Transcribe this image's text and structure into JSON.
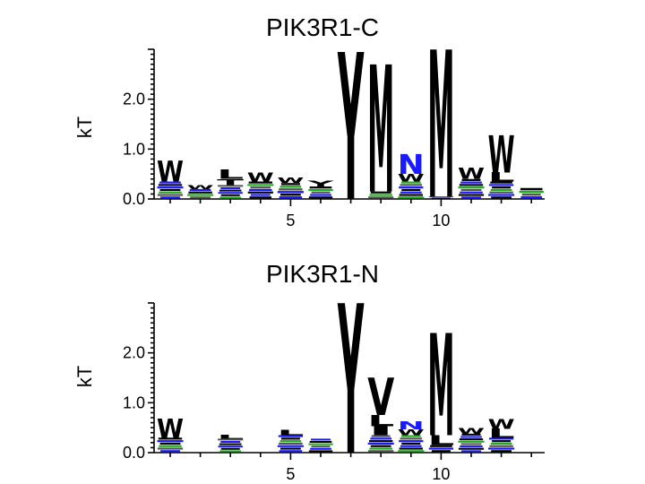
{
  "chart_data": [
    {
      "type": "sequence-logo",
      "title": "PIK3R1-C",
      "ylabel": "kT",
      "ylim": [
        0,
        3.0
      ],
      "yticks": [
        "0.0",
        "1.0",
        "2.0"
      ],
      "xticks": [
        "5",
        "10"
      ],
      "positions": [
        {
          "pos": 1,
          "letters": [
            {
              "char": "W",
              "height": 0.42,
              "color": "#000000"
            }
          ],
          "noise": 0.35
        },
        {
          "pos": 2,
          "letters": [
            {
              "char": "W",
              "height": 0.08,
              "color": "#000000"
            }
          ],
          "noise": 0.2
        },
        {
          "pos": 3,
          "letters": [
            {
              "char": "T",
              "height": 0.12,
              "color": "#000000"
            },
            {
              "char": "L",
              "height": 0.18,
              "color": "#000000"
            }
          ],
          "noise": 0.28
        },
        {
          "pos": 4,
          "letters": [
            {
              "char": "W",
              "height": 0.18,
              "color": "#000000"
            }
          ],
          "noise": 0.35
        },
        {
          "pos": 5,
          "letters": [
            {
              "char": "W",
              "height": 0.1,
              "color": "#000000"
            }
          ],
          "noise": 0.32
        },
        {
          "pos": 6,
          "letters": [
            {
              "char": "Y",
              "height": 0.12,
              "color": "#000000"
            }
          ],
          "noise": 0.25
        },
        {
          "pos": 7,
          "letters": [
            {
              "char": "Y",
              "height": 2.95,
              "color": "#000000"
            }
          ],
          "noise": 0.0
        },
        {
          "pos": 8,
          "letters": [
            {
              "char": "M",
              "height": 2.55,
              "color": "#000000"
            }
          ],
          "noise": 0.15
        },
        {
          "pos": 9,
          "letters": [
            {
              "char": "N",
              "height": 0.4,
              "color": "#1a1aff"
            },
            {
              "char": "W",
              "height": 0.15,
              "color": "#000000"
            }
          ],
          "noise": 0.35
        },
        {
          "pos": 10,
          "letters": [
            {
              "char": "M",
              "height": 2.95,
              "color": "#000000"
            }
          ],
          "noise": 0.05
        },
        {
          "pos": 11,
          "letters": [
            {
              "char": "W",
              "height": 0.22,
              "color": "#000000"
            }
          ],
          "noise": 0.4
        },
        {
          "pos": 12,
          "letters": [
            {
              "char": "W",
              "height": 0.75,
              "color": "#000000"
            },
            {
              "char": "L",
              "height": 0.18,
              "color": "#000000"
            }
          ],
          "noise": 0.35
        },
        {
          "pos": 13,
          "letters": [],
          "noise": 0.22
        }
      ]
    },
    {
      "type": "sequence-logo",
      "title": "PIK3R1-N",
      "ylabel": "kT",
      "ylim": [
        0,
        3.0
      ],
      "yticks": [
        "0.0",
        "1.0",
        "2.0"
      ],
      "xticks": [
        "5",
        "10"
      ],
      "positions": [
        {
          "pos": 1,
          "letters": [
            {
              "char": "W",
              "height": 0.38,
              "color": "#000000"
            }
          ],
          "noise": 0.3
        },
        {
          "pos": 2,
          "letters": [],
          "noise": 0.0
        },
        {
          "pos": 3,
          "letters": [
            {
              "char": "L",
              "height": 0.08,
              "color": "#000000"
            }
          ],
          "noise": 0.28
        },
        {
          "pos": 4,
          "letters": [],
          "noise": 0.0
        },
        {
          "pos": 5,
          "letters": [
            {
              "char": "L",
              "height": 0.1,
              "color": "#000000"
            }
          ],
          "noise": 0.35
        },
        {
          "pos": 6,
          "letters": [],
          "noise": 0.28
        },
        {
          "pos": 7,
          "letters": [
            {
              "char": "Y",
              "height": 3.0,
              "color": "#000000"
            }
          ],
          "noise": 0.0
        },
        {
          "pos": 8,
          "letters": [
            {
              "char": "V",
              "height": 0.75,
              "color": "#000000"
            },
            {
              "char": "I",
              "height": 0.18,
              "color": "#000000"
            },
            {
              "char": "L",
              "height": 0.22,
              "color": "#000000"
            }
          ],
          "noise": 0.35
        },
        {
          "pos": 9,
          "letters": [
            {
              "char": "N",
              "height": 0.16,
              "color": "#1a1aff"
            },
            {
              "char": "W",
              "height": 0.12,
              "color": "#000000"
            }
          ],
          "noise": 0.35
        },
        {
          "pos": 10,
          "letters": [
            {
              "char": "M",
              "height": 2.05,
              "color": "#000000"
            },
            {
              "char": "L",
              "height": 0.2,
              "color": "#000000"
            }
          ],
          "noise": 0.15
        },
        {
          "pos": 11,
          "letters": [
            {
              "char": "W",
              "height": 0.12,
              "color": "#000000"
            }
          ],
          "noise": 0.38
        },
        {
          "pos": 12,
          "letters": [
            {
              "char": "W",
              "height": 0.2,
              "color": "#000000"
            },
            {
              "char": "L",
              "height": 0.18,
              "color": "#000000"
            }
          ],
          "noise": 0.3
        },
        {
          "pos": 13,
          "letters": [],
          "noise": 0.0
        }
      ]
    }
  ]
}
